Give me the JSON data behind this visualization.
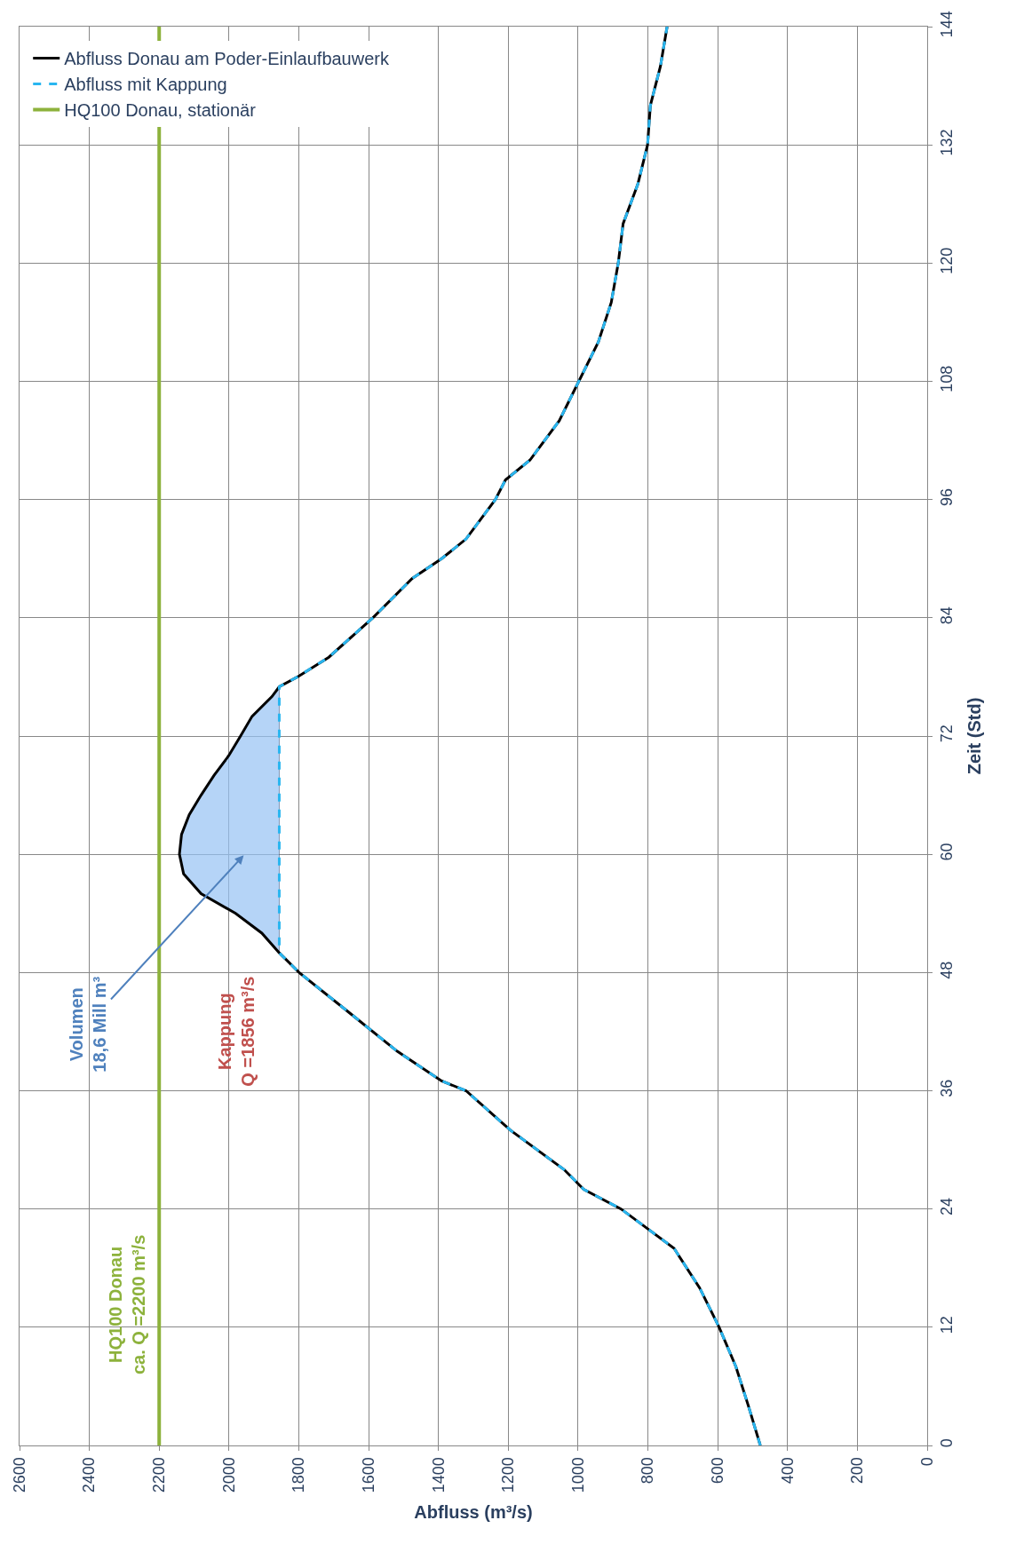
{
  "chart_data": {
    "type": "line",
    "xlabel": "Abfluss (m³/s)",
    "ylabel": "Zeit (Std)",
    "series": [
      {
        "type": "area",
        "color": "#96c3f5",
        "x": [
          1856,
          1906,
          1981,
          2080,
          2130,
          2142,
          2136,
          2114,
          2080,
          2043,
          2001,
          1967,
          1934,
          1877,
          1856,
          1856,
          1856
        ],
        "values": [
          50,
          52,
          54,
          56,
          58,
          60,
          62,
          64,
          66,
          68,
          70,
          72,
          74,
          76,
          77,
          63,
          50
        ]
      },
      {
        "name": "Abfluss Donau am Poder-Einlaufbauwerk",
        "color": "#000000",
        "line_style": "solid",
        "x": [
          478,
          512,
          548,
          596,
          652,
          725,
          877,
          984,
          1040,
          1194,
          1321,
          1391,
          1518,
          1658,
          1799,
          1856,
          1906,
          1981,
          2080,
          2130,
          2142,
          2136,
          2114,
          2080,
          2043,
          2001,
          1967,
          1934,
          1877,
          1856,
          1804,
          1714,
          1588,
          1475,
          1391,
          1321,
          1237,
          1208,
          1138,
          1054,
          998,
          942,
          905,
          885,
          871,
          829,
          801,
          793,
          764,
          745
        ],
        "values": [
          0,
          4,
          8,
          12,
          16,
          20,
          24,
          26,
          28,
          32,
          36,
          37,
          40,
          44,
          48,
          50,
          52,
          54,
          56,
          58,
          60,
          62,
          64,
          66,
          68,
          70,
          72,
          74,
          76,
          77,
          78,
          80,
          84,
          88,
          90,
          92,
          96,
          98,
          100,
          104,
          108,
          112,
          116,
          120,
          124,
          128,
          132,
          136,
          140,
          144
        ]
      },
      {
        "name": "Abfluss mit Kappung",
        "color": "#29b6f0",
        "line_style": "dashed",
        "x": [
          478,
          512,
          548,
          596,
          652,
          725,
          877,
          984,
          1040,
          1194,
          1321,
          1391,
          1518,
          1658,
          1799,
          1856,
          1856,
          1804,
          1714,
          1588,
          1475,
          1391,
          1321,
          1237,
          1208,
          1138,
          1054,
          998,
          942,
          905,
          885,
          871,
          829,
          801,
          793,
          764,
          745
        ],
        "values": [
          0,
          4,
          8,
          12,
          16,
          20,
          24,
          26,
          28,
          32,
          36,
          37,
          40,
          44,
          48,
          50,
          77,
          78,
          80,
          84,
          88,
          90,
          92,
          96,
          98,
          100,
          104,
          108,
          112,
          116,
          120,
          124,
          128,
          132,
          136,
          140,
          144
        ]
      },
      {
        "name": "HQ100 Donau, stationär",
        "color": "#8db23c",
        "line_style": "solid",
        "x": [
          2200,
          2200
        ],
        "values": [
          0,
          144
        ]
      }
    ],
    "xlim": [
      2600,
      0
    ],
    "xticks": [
      0,
      200,
      400,
      600,
      800,
      1000,
      1200,
      1400,
      1600,
      1800,
      2000,
      2200,
      2400,
      2600
    ],
    "ylim": [
      0,
      144
    ],
    "yticks": [
      0,
      12,
      24,
      36,
      48,
      60,
      72,
      84,
      96,
      108,
      120,
      132,
      144
    ],
    "grid": true,
    "legend": "top left",
    "marker": "none",
    "annotations": [
      {
        "text": "HQ100 Donau\nca. Q =2200 m³/s",
        "x": 2200,
        "y": 7
      },
      "Volumen\n18,6 Mill m³",
      "Kappung\nQ =1856 m³/s"
    ]
  }
}
